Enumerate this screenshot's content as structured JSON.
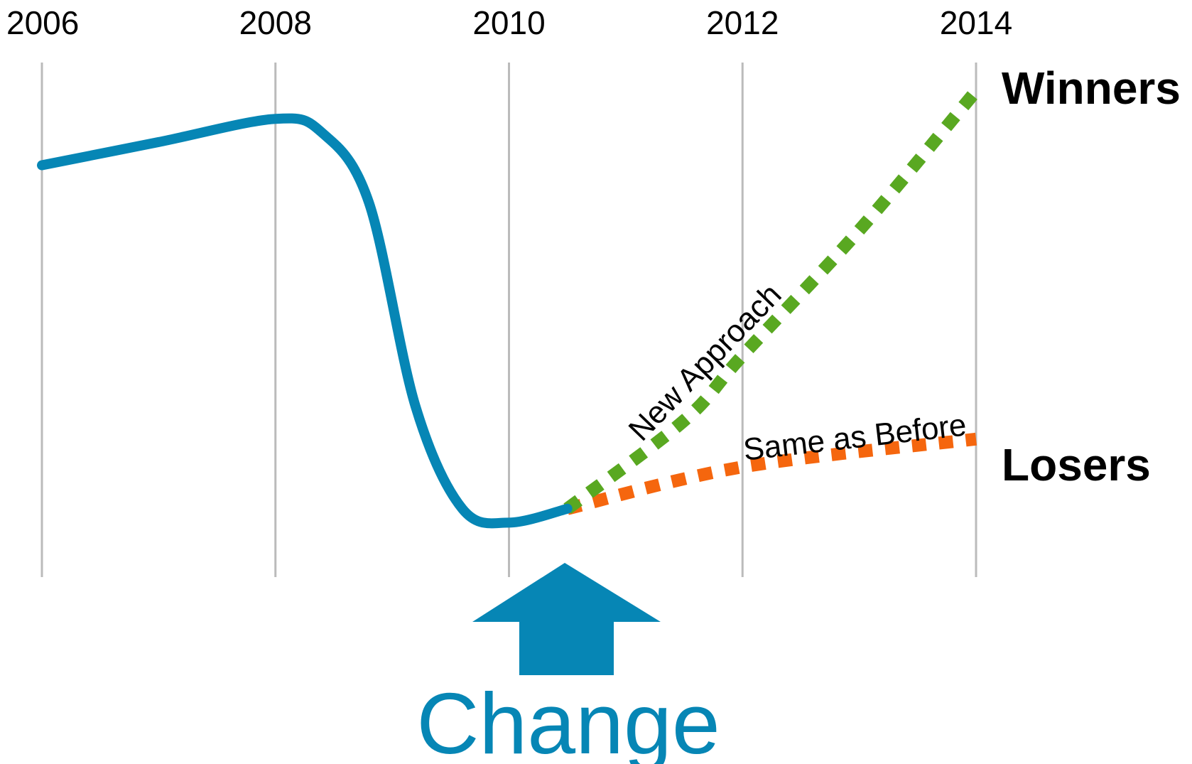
{
  "colors": {
    "history": "#0686b5",
    "new_approach": "#59a821",
    "same_as_before": "#f5660e",
    "gridline": "#bbbbbb",
    "change_arrow": "#0686b5",
    "text": "#000000"
  },
  "chart_data": {
    "type": "line",
    "title": "",
    "xlabel": "",
    "ylabel": "",
    "x_ticks": [
      "2006",
      "2008",
      "2010",
      "2012",
      "2014"
    ],
    "xlim": [
      2006,
      2014
    ],
    "grid": "vertical",
    "series": [
      {
        "name": "",
        "style": "solid",
        "x": [
          2006,
          2007,
          2008,
          2008.4,
          2008.8,
          2009.2,
          2009.6,
          2010,
          2010.5
        ],
        "y": [
          82,
          87,
          92,
          89,
          74,
          30,
          8,
          5,
          8
        ]
      },
      {
        "name": "New Approach",
        "style": "dotted",
        "x": [
          2010.5,
          2011.5,
          2012,
          2013,
          2014
        ],
        "y": [
          8,
          27,
          41,
          68,
          98
        ]
      },
      {
        "name": "Same as Before",
        "style": "dotted",
        "x": [
          2010.5,
          2012,
          2014
        ],
        "y": [
          8,
          17,
          23
        ]
      }
    ],
    "annotations": {
      "winners": "Winners",
      "losers": "Losers",
      "new_approach": "New Approach",
      "same_as_before": "Same as Before",
      "change": "Change"
    },
    "change_marker_x": 2010.5
  }
}
